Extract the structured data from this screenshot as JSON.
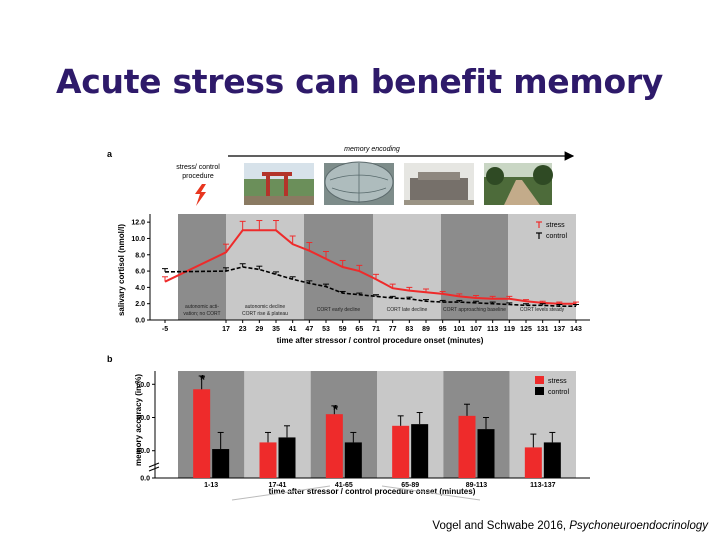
{
  "slide": {
    "title": "Acute stress can benefit memory",
    "citation_authors": "Vogel and Schwabe 2016, ",
    "citation_journal": "Psychoneuroendocrinology"
  },
  "colors": {
    "stress": "#ee2b2b",
    "control": "#000000",
    "title": "#2e1a6a",
    "band_dark": "#8c8c8c",
    "band_light": "#c8c8c8"
  },
  "figure_a": {
    "panel_label": "a",
    "arrow_label": "memory encoding",
    "procedure_label_1": "stress/ control",
    "procedure_label_2": "procedure",
    "lightning_icon": "lightning-bolt-icon",
    "photos": [
      "temple-gate-photo",
      "globe-sculpture-photo",
      "stone-wall-photo",
      "park-path-photo"
    ],
    "phase_labels": [
      [
        "autonomic acti-",
        "vation; no CORT"
      ],
      [
        "autonomic decline",
        "CORT rise & plateau"
      ],
      [
        "CORT early decline"
      ],
      [
        "CORT late decline"
      ],
      [
        "CORT approaching baseline"
      ],
      [
        "CORT levels steady"
      ]
    ]
  },
  "figure_b": {
    "panel_label": "b",
    "significance_marks": [
      "*",
      "*"
    ]
  },
  "chart_data": [
    {
      "type": "line",
      "ylabel": "salivary cortisol (nmol/l)",
      "xlabel": "time after stressor / control procedure onset (minutes)",
      "x": [
        -5,
        17,
        23,
        29,
        35,
        41,
        47,
        53,
        59,
        65,
        71,
        77,
        83,
        89,
        95,
        101,
        107,
        113,
        119,
        125,
        131,
        137,
        143
      ],
      "xticks": [
        "-5",
        "17",
        "23",
        "29",
        "35",
        "41",
        "47",
        "53",
        "59",
        "65",
        "71",
        "77",
        "83",
        "89",
        "95",
        "101",
        "107",
        "113",
        "119",
        "125",
        "131",
        "137",
        "143"
      ],
      "yticks": [
        "0.0",
        "2.0",
        "4.0",
        "6.0",
        "8.0",
        "10.0",
        "12.0"
      ],
      "ylim": [
        0,
        13
      ],
      "series": [
        {
          "name": "stress",
          "values": [
            4.7,
            8.3,
            11.0,
            11.0,
            11.0,
            9.3,
            8.5,
            7.5,
            6.5,
            6.0,
            5.0,
            3.9,
            3.6,
            3.4,
            3.2,
            2.9,
            2.7,
            2.6,
            2.6,
            2.3,
            2.1,
            2.0,
            2.0
          ],
          "errors": [
            0.6,
            1.0,
            1.1,
            1.2,
            1.2,
            1.0,
            1.0,
            0.9,
            0.8,
            0.7,
            0.6,
            0.5,
            0.4,
            0.4,
            0.3,
            0.3,
            0.3,
            0.3,
            0.3,
            0.2,
            0.2,
            0.2,
            0.2
          ]
        },
        {
          "name": "control",
          "values": [
            5.9,
            6.0,
            6.5,
            6.2,
            5.6,
            5.0,
            4.5,
            4.1,
            3.3,
            3.1,
            2.9,
            2.7,
            2.6,
            2.3,
            2.2,
            2.2,
            2.1,
            2.0,
            1.9,
            1.8,
            1.8,
            1.7,
            1.7
          ],
          "errors": [
            0.4,
            0.4,
            0.4,
            0.4,
            0.3,
            0.3,
            0.3,
            0.3,
            0.2,
            0.2,
            0.2,
            0.2,
            0.2,
            0.2,
            0.2,
            0.2,
            0.2,
            0.2,
            0.2,
            0.2,
            0.2,
            0.2,
            0.2
          ]
        }
      ],
      "legend": [
        "stress",
        "control"
      ],
      "legend_position": "top-right",
      "phase_boundaries": [
        -5,
        17,
        47,
        71,
        95,
        119,
        143
      ]
    },
    {
      "type": "bar",
      "ylabel": "memory accuracy (in %)",
      "xlabel": "time after stressor / control procedure onset (minutes)",
      "categories": [
        "1-13",
        "17-41",
        "41-65",
        "65-89",
        "89-113",
        "113-137"
      ],
      "yticks": [
        "0.0",
        "40.0",
        "50.0",
        "60.0"
      ],
      "axis_break": true,
      "ylim": [
        36,
        64
      ],
      "series": [
        {
          "name": "stress",
          "values": [
            58.5,
            42.5,
            51.0,
            47.5,
            50.5,
            41.0
          ],
          "errors": [
            4.0,
            3.0,
            2.5,
            3.0,
            3.5,
            4.0
          ]
        },
        {
          "name": "control",
          "values": [
            40.5,
            44.0,
            42.5,
            48.0,
            46.5,
            42.5
          ],
          "errors": [
            5.0,
            3.5,
            3.0,
            3.5,
            3.5,
            3.0
          ]
        }
      ],
      "legend": [
        "stress",
        "control"
      ],
      "legend_position": "top-right"
    }
  ]
}
